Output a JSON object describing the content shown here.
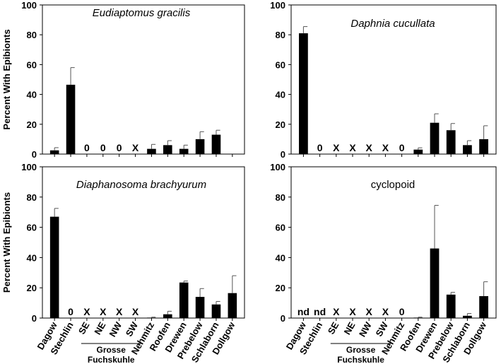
{
  "chart_data": [
    {
      "type": "bar",
      "title": "Eudiaptomus gracilis",
      "title_italic": true,
      "ylabel": "Percent With Epibionts",
      "ylim": [
        0,
        100
      ],
      "yticks": [
        0,
        20,
        40,
        60,
        80,
        100
      ],
      "categories": [
        "Dagow",
        "Stechlin",
        "SE",
        "NE",
        "NW",
        "SW",
        "Nehmitz",
        "Roofen",
        "Drewen",
        "Prebelow",
        "Schlaborn",
        "Dollgow"
      ],
      "values": [
        2.5,
        46.5,
        null,
        null,
        null,
        null,
        3.5,
        6.0,
        3.5,
        10.0,
        13.0,
        null
      ],
      "errors": [
        1.8,
        11.5,
        null,
        null,
        null,
        null,
        3.0,
        3.0,
        2.5,
        5.0,
        3.0,
        null
      ],
      "markers": [
        "",
        "",
        "0",
        "0",
        "0",
        "X",
        "",
        "",
        "",
        "",
        "",
        ""
      ]
    },
    {
      "type": "bar",
      "title": "Daphnia cucullata",
      "title_italic": true,
      "ylabel": "",
      "ylim": [
        0,
        100
      ],
      "yticks": [
        0,
        20,
        40,
        60,
        80,
        100
      ],
      "categories": [
        "Dagow",
        "Stechlin",
        "SE",
        "NE",
        "NW",
        "SW",
        "Nehmitz",
        "Roofen",
        "Drewen",
        "Prebelow",
        "Schlaborn",
        "Dollgow"
      ],
      "values": [
        81.0,
        null,
        null,
        null,
        null,
        null,
        null,
        3.0,
        21.0,
        16.0,
        6.0,
        10.0
      ],
      "errors": [
        4.5,
        null,
        null,
        null,
        null,
        null,
        null,
        1.2,
        6.0,
        4.5,
        3.0,
        9.0
      ],
      "markers": [
        "",
        "0",
        "X",
        "X",
        "X",
        "X",
        "0",
        "",
        "",
        "",
        "",
        ""
      ]
    },
    {
      "type": "bar",
      "title": "Diaphanosoma brachyurum",
      "title_italic": true,
      "ylabel": "Percent With Epibionts",
      "ylim": [
        0,
        100
      ],
      "yticks": [
        0,
        20,
        40,
        60,
        80,
        100
      ],
      "categories": [
        "Dagow",
        "Stechlin",
        "SE",
        "NE",
        "NW",
        "SW",
        "Nehmitz",
        "Roofen",
        "Drewen",
        "Prebelow",
        "Schlaborn",
        "Dollgow"
      ],
      "values": [
        67.0,
        null,
        null,
        null,
        null,
        null,
        0.3,
        2.5,
        23.5,
        14.0,
        9.0,
        16.5
      ],
      "errors": [
        5.5,
        null,
        null,
        null,
        null,
        null,
        0.3,
        2.0,
        1.0,
        5.5,
        2.0,
        11.5
      ],
      "markers": [
        "",
        "0",
        "X",
        "X",
        "X",
        "X",
        "",
        "",
        "",
        "",
        "",
        ""
      ]
    },
    {
      "type": "bar",
      "title": "cyclopoid",
      "title_italic": false,
      "ylabel": "",
      "ylim": [
        0,
        100
      ],
      "yticks": [
        0,
        20,
        40,
        60,
        80,
        100
      ],
      "categories": [
        "Dagow",
        "Stechlin",
        "SE",
        "NE",
        "NW",
        "SW",
        "Nehmitz",
        "Roofen",
        "Drewen",
        "Prebelow",
        "Schlaborn",
        "Dollgow"
      ],
      "values": [
        null,
        null,
        null,
        null,
        null,
        null,
        null,
        0.3,
        46.0,
        15.5,
        1.5,
        14.5
      ],
      "errors": [
        null,
        null,
        null,
        null,
        null,
        null,
        null,
        0.3,
        28.5,
        1.5,
        1.5,
        9.5
      ],
      "markers": [
        "nd",
        "nd",
        "X",
        "X",
        "X",
        "X",
        "0",
        "",
        "",
        "",
        "",
        ""
      ]
    }
  ],
  "group_label_line1": "Grosse",
  "group_label_line2": "Fuchskuhle",
  "bar_color": "#000000"
}
